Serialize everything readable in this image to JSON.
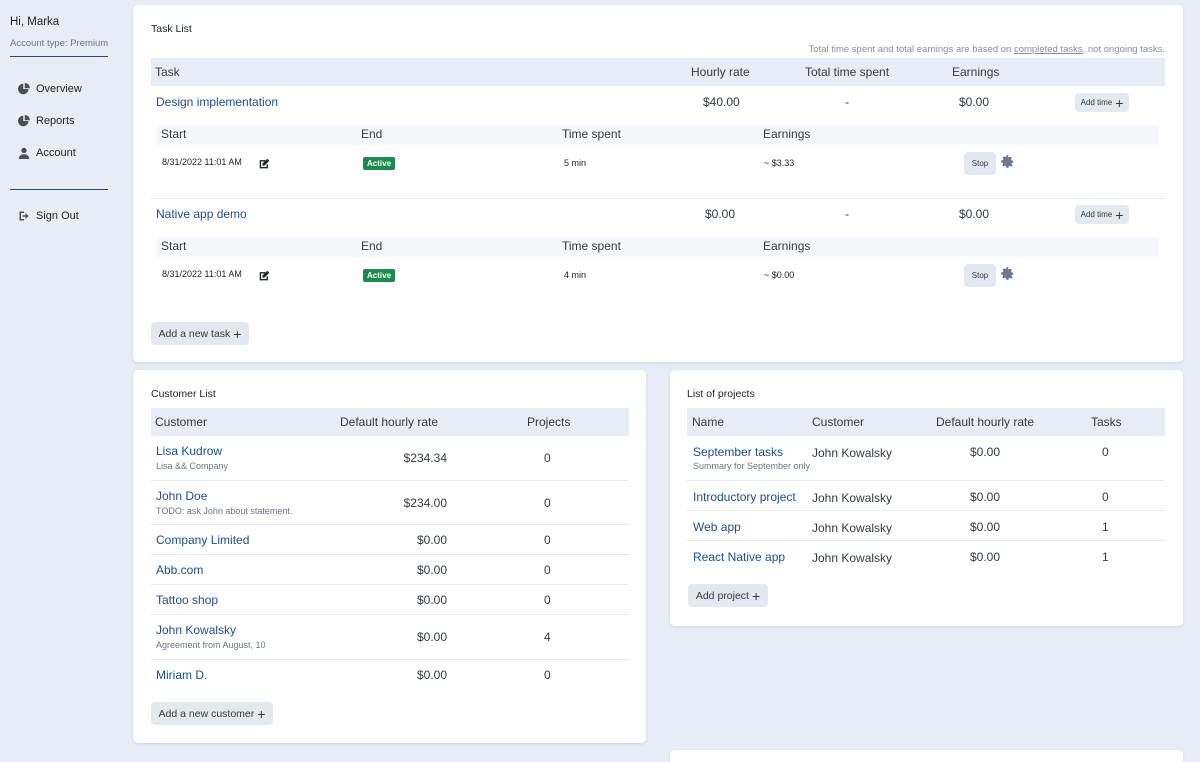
{
  "sidebar": {
    "greeting": "Hi, Marka",
    "account_type": "Account type: Premium",
    "nav": [
      {
        "label": "Overview",
        "icon": "pie-chart-icon"
      },
      {
        "label": "Reports",
        "icon": "pie-chart-icon"
      },
      {
        "label": "Account",
        "icon": "user-icon"
      }
    ],
    "sign_out": {
      "label": "Sign Out",
      "icon": "sign-out-icon"
    }
  },
  "task_list": {
    "title": "Task List",
    "note_prefix": "Total time spent and total earnings are based on ",
    "note_link": "completed tasks",
    "note_suffix": ", not ongoing tasks.",
    "columns": [
      "Task",
      "Hourly rate",
      "Total time spent",
      "Earnings"
    ],
    "sub_columns": [
      "Start",
      "End",
      "Time spent",
      "Earnings"
    ],
    "tasks": [
      {
        "name": "Design implementation",
        "rate": "$40.00",
        "total_time": "-",
        "earnings": "$0.00",
        "add_time_label": "Add time",
        "entry": {
          "start": "8/31/2022 11:01 AM",
          "status": "Active",
          "time": "5 min",
          "earnings": "~ $3.33",
          "stop_label": "Stop"
        }
      },
      {
        "name": "Native app demo",
        "rate": "$0.00",
        "total_time": "-",
        "earnings": "$0.00",
        "add_time_label": "Add time",
        "entry": {
          "start": "8/31/2022 11:01 AM",
          "status": "Active",
          "time": "4 min",
          "earnings": "~ $0.00",
          "stop_label": "Stop"
        }
      }
    ],
    "add_label": "Add a new task"
  },
  "customer_list": {
    "title": "Customer List",
    "columns": [
      "Customer",
      "Default hourly rate",
      "Projects"
    ],
    "rows": [
      {
        "name": "Lisa Kudrow",
        "note": "Lisa && Company",
        "rate": "$234.34",
        "projects": "0"
      },
      {
        "name": "John Doe",
        "note": "TODO: ask John about statement.",
        "rate": "$234.00",
        "projects": "0"
      },
      {
        "name": "Company Limited",
        "note": "",
        "rate": "$0.00",
        "projects": "0"
      },
      {
        "name": "Abb.com",
        "note": "",
        "rate": "$0.00",
        "projects": "0"
      },
      {
        "name": "Tattoo shop",
        "note": "",
        "rate": "$0.00",
        "projects": "0"
      },
      {
        "name": "John Kowalsky",
        "note": "Agreement from August, 10",
        "rate": "$0.00",
        "projects": "4"
      },
      {
        "name": "Miriam D.",
        "note": "",
        "rate": "$0.00",
        "projects": "0"
      }
    ],
    "add_label": "Add a new customer"
  },
  "project_list": {
    "title": "List of projects",
    "columns": [
      "Name",
      "Customer",
      "Default hourly rate",
      "Tasks"
    ],
    "rows": [
      {
        "name": "September tasks",
        "note": "Summary for September only",
        "customer": "John Kowalsky",
        "rate": "$0.00",
        "tasks": "0"
      },
      {
        "name": "Introductory project",
        "note": "",
        "customer": "John Kowalsky",
        "rate": "$0.00",
        "tasks": "0"
      },
      {
        "name": "Web app",
        "note": "",
        "customer": "John Kowalsky",
        "rate": "$0.00",
        "tasks": "1"
      },
      {
        "name": "React Native app",
        "note": "",
        "customer": "John Kowalsky",
        "rate": "$0.00",
        "tasks": "1"
      }
    ],
    "add_label": "Add project"
  },
  "colors": {
    "link": "#1d4e89",
    "active_badge": "#1e8a4e",
    "background": "#e8edf5"
  }
}
